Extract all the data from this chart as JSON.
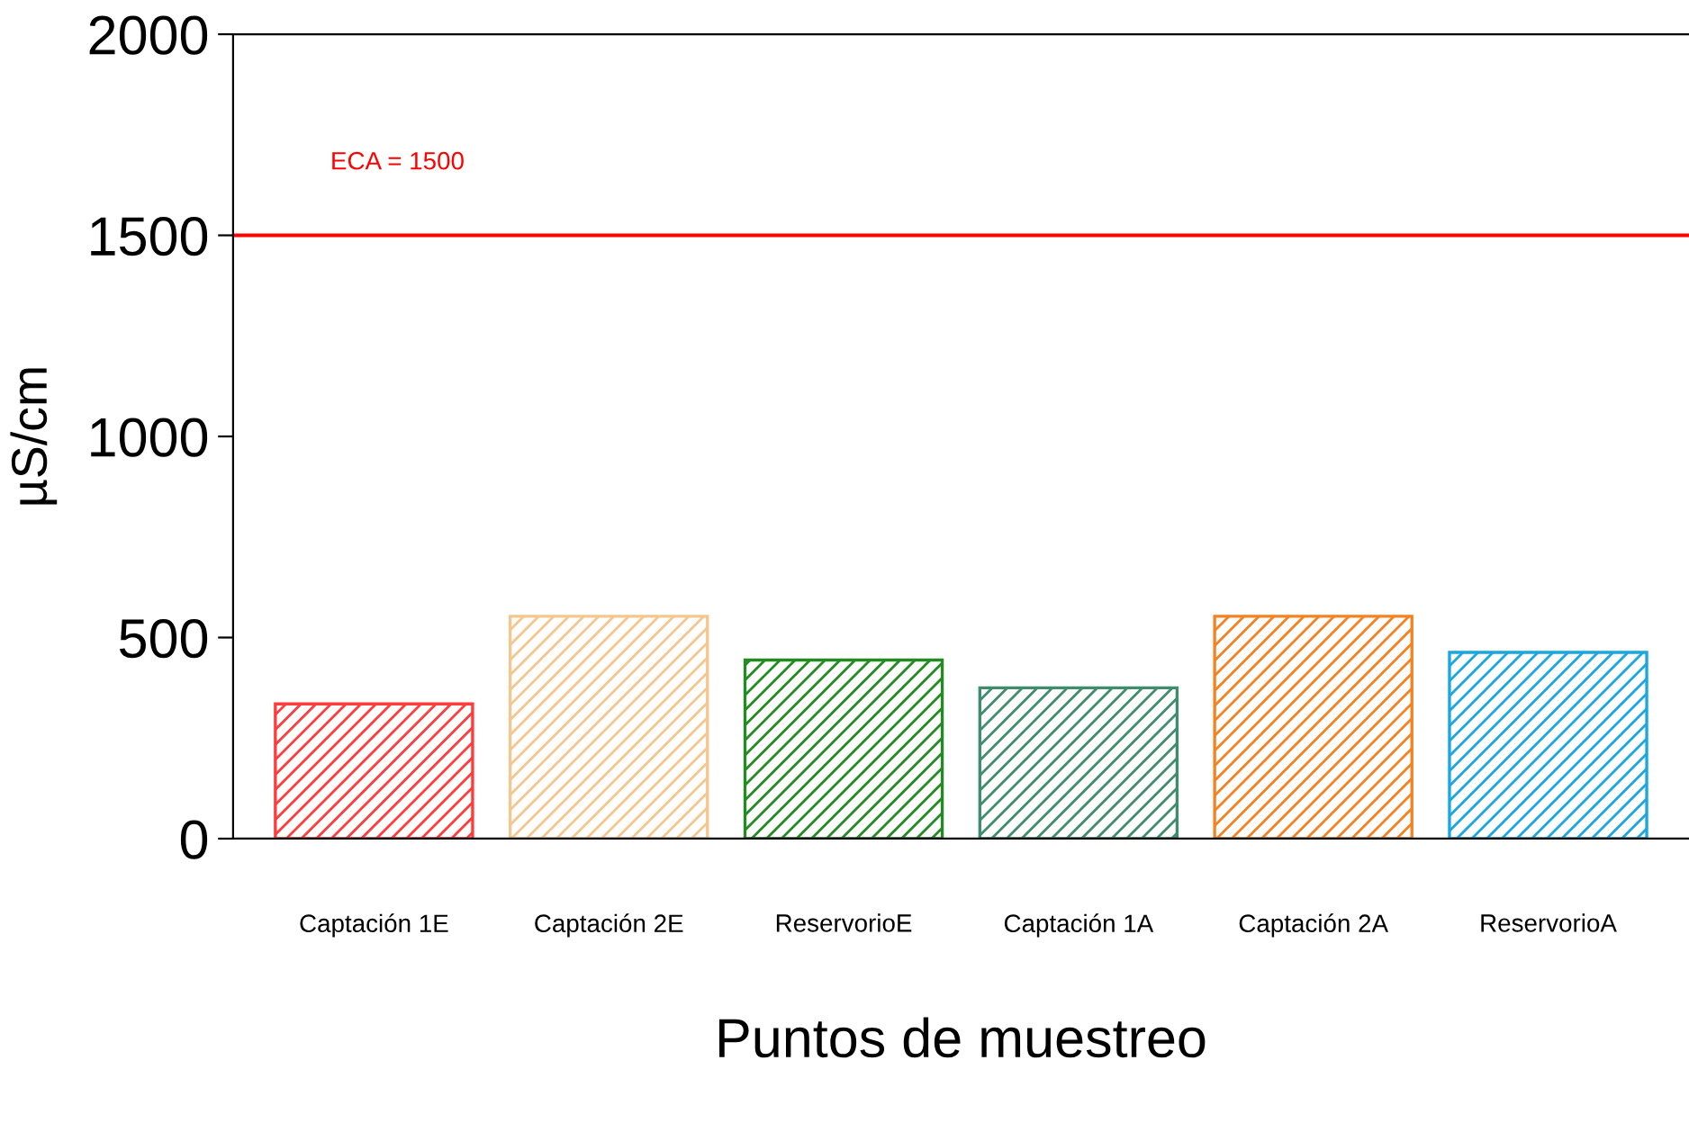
{
  "chart_data": {
    "type": "bar",
    "xlabel": "Puntos de muestreo",
    "ylabel": "µS/cm",
    "categories": [
      "Captación 1E",
      "Captación 2E",
      "ReservorioE",
      "Captación 1A",
      "Captación 2A",
      "ReservorioA"
    ],
    "values": [
      335,
      553,
      444,
      375,
      553,
      463
    ],
    "colors": [
      "#ff3b3b",
      "#f5c68e",
      "#228b22",
      "#3f8c6e",
      "#f58220",
      "#1aa7e0"
    ],
    "ylim": [
      0,
      2000
    ],
    "yticks": [
      0,
      500,
      1000,
      1500,
      2000
    ],
    "ref_lines": [
      {
        "axis": "y",
        "value": 1500,
        "label": "ECA = 1500",
        "color": "#ff0000",
        "line_style": "solid"
      }
    ],
    "grid": false
  }
}
